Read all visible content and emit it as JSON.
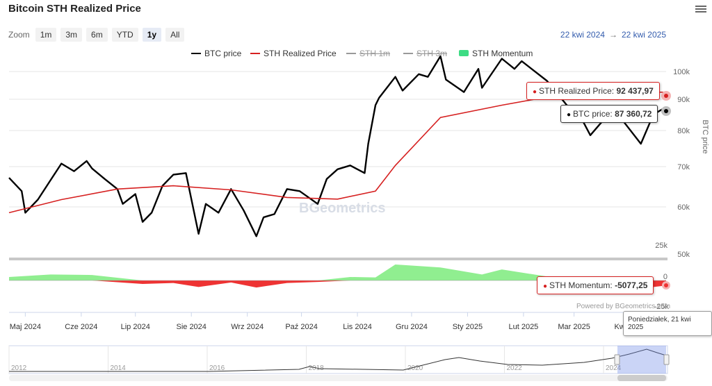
{
  "title": "Bitcoin STH Realized Price",
  "zoom": {
    "label": "Zoom",
    "buttons": [
      "1m",
      "3m",
      "6m",
      "YTD",
      "1y",
      "All"
    ],
    "active": "1y"
  },
  "range": {
    "from": "22 kwi 2024",
    "arrow": "→",
    "to": "22 kwi 2025"
  },
  "legend": [
    {
      "name": "BTC price",
      "color": "#000000",
      "disabled": false,
      "type": "line"
    },
    {
      "name": "STH Realized Price",
      "color": "#d62020",
      "disabled": false,
      "type": "line"
    },
    {
      "name": "STH 1m",
      "color": "#999999",
      "disabled": true,
      "type": "line"
    },
    {
      "name": "STH 3m",
      "color": "#999999",
      "disabled": true,
      "type": "line"
    },
    {
      "name": "STH Momentum",
      "color": "#3ddc84",
      "disabled": false,
      "type": "area"
    }
  ],
  "tooltips": {
    "sth": {
      "label": "STH Realized Price:",
      "value": "92 437,97"
    },
    "btc": {
      "label": "BTC price:",
      "value": "87 360,72"
    },
    "momentum": {
      "label": "STH Momentum:",
      "value": "-5077,25"
    },
    "date": "Poniedziałek, 21 kwi 2025"
  },
  "powered_by": "Powered by BGeometrics.com",
  "watermark": "BGeometrics",
  "navigator_years": [
    "2012",
    "2014",
    "2016",
    "2018",
    "2020",
    "2022",
    "2024"
  ],
  "colors": {
    "btc": "#000000",
    "sth": "#d62020",
    "mom_pos": "#90ee90",
    "mom_neg": "#ee3333",
    "mom_pos_line": "#5cc65c"
  },
  "chart_data": {
    "type": "line",
    "x_ticks": [
      "Maj 2024",
      "Cze 2024",
      "Lip 2024",
      "Sie 2024",
      "Wrz 2024",
      "Paź 2024",
      "Lis 2024",
      "Gru 2024",
      "Sty 2025",
      "Lut 2025",
      "Mar 2025",
      "Kwi 2025"
    ],
    "y_axis": {
      "label": "BTC price",
      "ticks": [
        "50k",
        "60k",
        "70k",
        "80k",
        "90k",
        "100k"
      ],
      "ylim": [
        50000,
        106000
      ],
      "scale": "log"
    },
    "momentum_axis": {
      "ticks": [
        "25k",
        "0",
        "-25k"
      ],
      "ylim": [
        -25000,
        25000
      ]
    },
    "series": [
      {
        "name": "BTC price",
        "x": [
          "2024-04-22",
          "2024-04-29",
          "2024-05-01",
          "2024-05-08",
          "2024-05-15",
          "2024-05-21",
          "2024-05-28",
          "2024-06-04",
          "2024-06-07",
          "2024-06-14",
          "2024-06-21",
          "2024-06-24",
          "2024-07-01",
          "2024-07-05",
          "2024-07-10",
          "2024-07-16",
          "2024-07-22",
          "2024-07-29",
          "2024-08-05",
          "2024-08-09",
          "2024-08-16",
          "2024-08-23",
          "2024-08-30",
          "2024-09-06",
          "2024-09-10",
          "2024-09-16",
          "2024-09-23",
          "2024-09-30",
          "2024-10-10",
          "2024-10-15",
          "2024-10-21",
          "2024-10-28",
          "2024-11-05",
          "2024-11-07",
          "2024-11-11",
          "2024-11-13",
          "2024-11-22",
          "2024-11-26",
          "2024-12-05",
          "2024-12-10",
          "2024-12-17",
          "2024-12-20",
          "2024-12-30",
          "2025-01-07",
          "2025-01-09",
          "2025-01-20",
          "2025-01-27",
          "2025-01-31",
          "2025-02-14",
          "2025-02-25",
          "2025-03-03",
          "2025-03-10",
          "2025-03-20",
          "2025-03-28",
          "2025-04-07",
          "2025-04-14",
          "2025-04-21"
        ],
        "values": [
          66800,
          63500,
          58500,
          61500,
          66200,
          70500,
          68500,
          71200,
          69200,
          66500,
          64000,
          60500,
          62800,
          56500,
          58500,
          64800,
          67600,
          68000,
          54000,
          60500,
          58500,
          64000,
          59000,
          53500,
          57500,
          58200,
          64000,
          63500,
          60500,
          66500,
          69000,
          70000,
          68000,
          76000,
          88000,
          90500,
          98000,
          93000,
          99000,
          98000,
          106000,
          97000,
          92500,
          101000,
          94000,
          105000,
          101000,
          104000,
          96500,
          88000,
          86000,
          78500,
          85000,
          83000,
          76000,
          85000,
          87360
        ]
      },
      {
        "name": "STH Realized Price",
        "x": [
          "2024-04-22",
          "2024-05-21",
          "2024-06-21",
          "2024-07-22",
          "2024-08-23",
          "2024-09-23",
          "2024-10-21",
          "2024-11-11",
          "2024-11-22",
          "2024-12-17",
          "2025-01-20",
          "2025-02-25",
          "2025-03-20",
          "2025-04-21"
        ],
        "values": [
          58500,
          61500,
          64000,
          64800,
          63800,
          62000,
          61600,
          63500,
          70000,
          84000,
          88000,
          92000,
          92500,
          92438
        ]
      },
      {
        "name": "STH Momentum",
        "x": [
          "2024-04-22",
          "2024-05-15",
          "2024-06-07",
          "2024-07-05",
          "2024-07-22",
          "2024-08-05",
          "2024-08-23",
          "2024-09-06",
          "2024-09-23",
          "2024-10-10",
          "2024-10-28",
          "2024-11-11",
          "2024-11-22",
          "2024-12-17",
          "2025-01-09",
          "2025-01-20",
          "2025-02-14",
          "2025-03-03",
          "2025-03-28",
          "2025-04-14",
          "2025-04-21"
        ],
        "values": [
          3500,
          6000,
          5500,
          -3500,
          -2500,
          -6500,
          -2000,
          -7000,
          -2500,
          -1500,
          3500,
          3000,
          16000,
          13000,
          6000,
          11000,
          4000,
          -2000,
          -4000,
          -6500,
          -5077
        ]
      }
    ]
  }
}
